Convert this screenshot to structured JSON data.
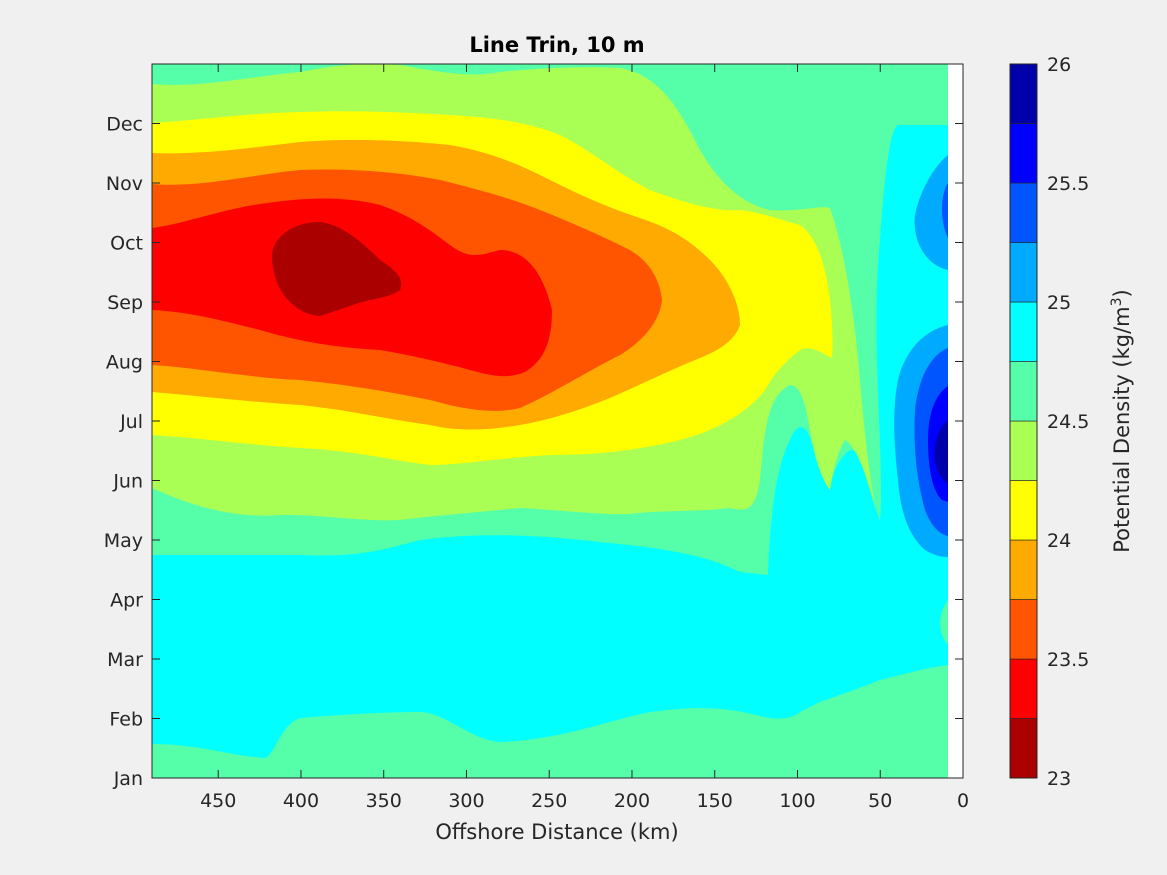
{
  "chart_data": {
    "type": "heatmap",
    "subtype": "filled-contour",
    "title": "Line Trin, 10 m",
    "xlabel": "Offshore Distance (km)",
    "colorbar_label_prefix": "Potential Density (kg/m",
    "colorbar_label_superscript": "3",
    "colorbar_label_suffix": ")",
    "x_ticks": [
      "450",
      "400",
      "350",
      "300",
      "250",
      "200",
      "150",
      "100",
      "50",
      "0"
    ],
    "x_tick_values": [
      450,
      400,
      350,
      300,
      250,
      200,
      150,
      100,
      50,
      0
    ],
    "xlim": [
      490,
      0
    ],
    "x_reversed": true,
    "y_ticks": [
      "Jan",
      "Feb",
      "Mar",
      "Apr",
      "May",
      "Jun",
      "Jul",
      "Aug",
      "Sep",
      "Oct",
      "Nov",
      "Dec"
    ],
    "y_tick_values": [
      1,
      2,
      3,
      4,
      5,
      6,
      7,
      8,
      9,
      10,
      11,
      12
    ],
    "ylim": [
      1,
      13
    ],
    "colorbar_ticks": [
      "23",
      "23.5",
      "24",
      "24.5",
      "25",
      "25.5",
      "26"
    ],
    "colorbar_tick_values": [
      23,
      23.5,
      24,
      24.5,
      25,
      25.5,
      26
    ],
    "clim": [
      23,
      26
    ],
    "levels": [
      23,
      23.25,
      23.5,
      23.75,
      24,
      24.25,
      24.5,
      24.75,
      25,
      25.25,
      25.5,
      25.75,
      26
    ],
    "colors": [
      "#aa0000",
      "#ff0000",
      "#ff5500",
      "#ffaa00",
      "#ffff00",
      "#aaff55",
      "#55ffaa",
      "#00ffff",
      "#00aaff",
      "#0055ff",
      "#0000ff",
      "#0000aa"
    ],
    "legend": "colorbar-right",
    "grid": false
  }
}
